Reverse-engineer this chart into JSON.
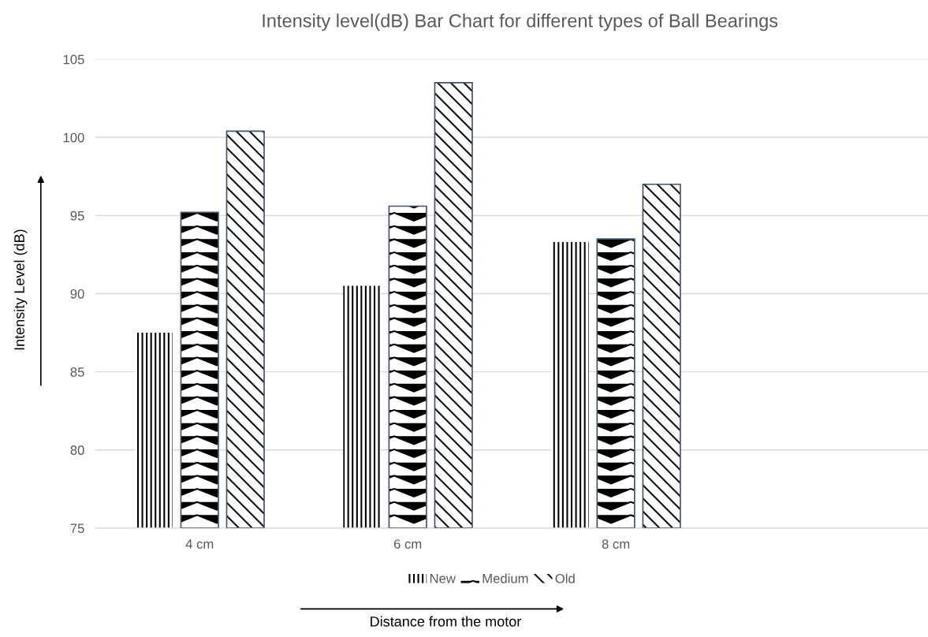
{
  "chart_data": {
    "type": "bar",
    "title": "Intensity level(dB) Bar Chart for different types of Ball Bearings",
    "xlabel": "Distance from the motor",
    "ylabel": "Intensity Level (dB)",
    "categories": [
      "4 cm",
      "6 cm",
      "8 cm",
      null
    ],
    "series": [
      {
        "name": "New",
        "color": "#000000",
        "values": [
          87.5,
          90.5,
          93.3,
          null
        ]
      },
      {
        "name": "Medium",
        "color": "#000000",
        "values": [
          95.2,
          95.6,
          93.5,
          null
        ]
      },
      {
        "name": "Old",
        "color": "#0d1214",
        "values": [
          100.4,
          103.5,
          97.0,
          null
        ]
      }
    ],
    "ylim": [
      75,
      105
    ],
    "yticks": [
      75,
      80,
      85,
      90,
      95,
      100,
      105
    ],
    "grid": "y",
    "legend": "bottom"
  }
}
